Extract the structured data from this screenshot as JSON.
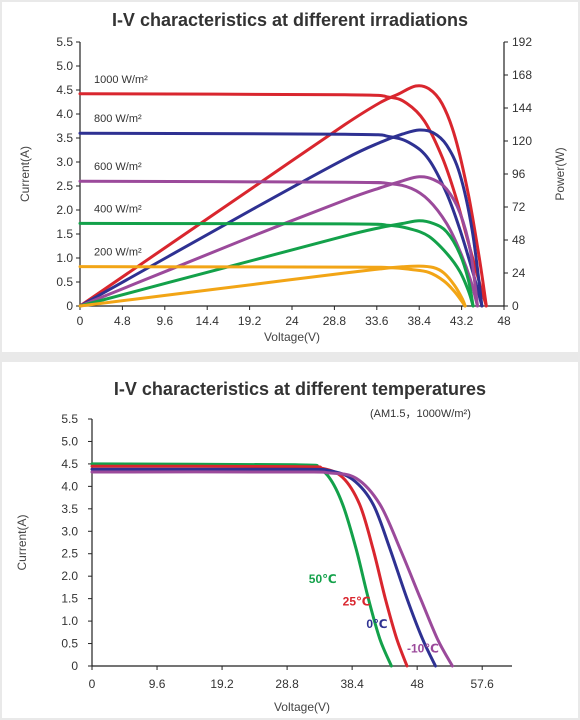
{
  "chart_data": [
    {
      "type": "line",
      "title": "I-V characteristics at different irradiations",
      "xlabel": "Voltage(V)",
      "ylabel": "Current(A)",
      "y2label": "Power(W)",
      "xlim": [
        0,
        48
      ],
      "ylim": [
        0,
        5.5
      ],
      "y2lim": [
        0,
        192
      ],
      "xticks": [
        "0",
        "4.8",
        "9.6",
        "14.4",
        "19.2",
        "24",
        "28.8",
        "33.6",
        "38.4",
        "43.2",
        "48"
      ],
      "yticks": [
        "0",
        "0.5",
        "1.0",
        "1.5",
        "2.0",
        "2.5",
        "3.0",
        "3.5",
        "4.0",
        "4.5",
        "5.0",
        "5.5"
      ],
      "y2ticks": [
        "0",
        "24",
        "48",
        "72",
        "96",
        "120",
        "144",
        "168",
        "192"
      ],
      "grid": false,
      "series": [
        {
          "name": "1000 W/m²",
          "color": "#d9262e",
          "iv": [
            [
              0,
              4.42
            ],
            [
              30,
              4.4
            ],
            [
              35,
              4.35
            ],
            [
              37,
              4.22
            ],
            [
              39,
              3.85
            ],
            [
              41,
              3.1
            ],
            [
              42.5,
              2.3
            ],
            [
              44,
              1.3
            ],
            [
              45.2,
              0.5
            ],
            [
              46,
              0
            ]
          ],
          "pv": [
            [
              0,
              0
            ],
            [
              10,
              44
            ],
            [
              20,
              88
            ],
            [
              30,
              132
            ],
            [
              34,
              148
            ],
            [
              36,
              154
            ],
            [
              38,
              160
            ],
            [
              39.5,
              158
            ],
            [
              41,
              147
            ],
            [
              42.5,
              122
            ],
            [
              44,
              80
            ],
            [
              45.2,
              35
            ],
            [
              46,
              0
            ]
          ]
        },
        {
          "name": "800 W/m²",
          "color": "#2e3192",
          "iv": [
            [
              0,
              3.6
            ],
            [
              30,
              3.58
            ],
            [
              35,
              3.53
            ],
            [
              37.5,
              3.38
            ],
            [
              39.5,
              3.05
            ],
            [
              41.5,
              2.35
            ],
            [
              43,
              1.6
            ],
            [
              44.4,
              0.75
            ],
            [
              45.5,
              0
            ]
          ],
          "pv": [
            [
              0,
              0
            ],
            [
              10,
              36
            ],
            [
              20,
              72
            ],
            [
              30,
              107
            ],
            [
              34,
              119
            ],
            [
              36.5,
              125
            ],
            [
              38.4,
              128
            ],
            [
              40,
              126
            ],
            [
              41.5,
              117
            ],
            [
              43,
              96
            ],
            [
              44.4,
              55
            ],
            [
              45.5,
              0
            ]
          ]
        },
        {
          "name": "600 W/m²",
          "color": "#9b4a9b",
          "iv": [
            [
              0,
              2.6
            ],
            [
              30,
              2.58
            ],
            [
              35,
              2.55
            ],
            [
              37.5,
              2.45
            ],
            [
              39.5,
              2.2
            ],
            [
              41.5,
              1.72
            ],
            [
              43,
              1.15
            ],
            [
              44.2,
              0.55
            ],
            [
              45,
              0
            ]
          ],
          "pv": [
            [
              0,
              0
            ],
            [
              10,
              26
            ],
            [
              20,
              52
            ],
            [
              30,
              77
            ],
            [
              34,
              86
            ],
            [
              36.5,
              91
            ],
            [
              38.4,
              94
            ],
            [
              40,
              92
            ],
            [
              41.5,
              85
            ],
            [
              43,
              68
            ],
            [
              44.2,
              40
            ],
            [
              45,
              0
            ]
          ]
        },
        {
          "name": "400 W/m²",
          "color": "#13a14a",
          "iv": [
            [
              0,
              1.72
            ],
            [
              30,
              1.71
            ],
            [
              35,
              1.68
            ],
            [
              37.5,
              1.6
            ],
            [
              39.5,
              1.45
            ],
            [
              41.5,
              1.1
            ],
            [
              43,
              0.72
            ],
            [
              44,
              0.3
            ],
            [
              44.5,
              0
            ]
          ],
          "pv": [
            [
              0,
              0
            ],
            [
              10,
              17
            ],
            [
              20,
              34
            ],
            [
              30,
              51
            ],
            [
              34,
              57
            ],
            [
              36.5,
              60
            ],
            [
              38.4,
              62
            ],
            [
              40,
              60
            ],
            [
              41.5,
              54
            ],
            [
              43,
              38
            ],
            [
              44,
              18
            ],
            [
              44.5,
              0
            ]
          ]
        },
        {
          "name": "200 W/m²",
          "color": "#f2a516",
          "iv": [
            [
              0,
              0.82
            ],
            [
              30,
              0.81
            ],
            [
              35,
              0.8
            ],
            [
              37.5,
              0.76
            ],
            [
              39.5,
              0.7
            ],
            [
              41.2,
              0.52
            ],
            [
              42.4,
              0.3
            ],
            [
              43.3,
              0.08
            ],
            [
              43.6,
              0
            ]
          ],
          "pv": [
            [
              0,
              0
            ],
            [
              10,
              8
            ],
            [
              20,
              16
            ],
            [
              30,
              24
            ],
            [
              34,
              27
            ],
            [
              36.5,
              28.5
            ],
            [
              38.4,
              29
            ],
            [
              40,
              28
            ],
            [
              41.2,
              24
            ],
            [
              42.4,
              15
            ],
            [
              43.3,
              5
            ],
            [
              43.6,
              0
            ]
          ]
        }
      ]
    },
    {
      "type": "line",
      "title": "I-V characteristics at different temperatures",
      "subtitle": "(AM1.5，1000W/m²)",
      "xlabel": "Voltage(V)",
      "ylabel": "Current(A)",
      "xlim": [
        0,
        62
      ],
      "ylim": [
        0,
        5.5
      ],
      "xticks": [
        {
          "v": 0,
          "t": "0"
        },
        {
          "v": 9.6,
          "t": "9.6"
        },
        {
          "v": 19.2,
          "t": "19.2"
        },
        {
          "v": 28.8,
          "t": "28.8"
        },
        {
          "v": 38.4,
          "t": "38.4"
        },
        {
          "v": 48,
          "t": "48"
        },
        {
          "v": 57.6,
          "t": "57.6"
        }
      ],
      "yticks": [
        "0",
        "0.5",
        "1.0",
        "1.5",
        "2.0",
        "2.5",
        "3.0",
        "3.5",
        "4.0",
        "4.5",
        "5.0",
        "5.5"
      ],
      "grid": false,
      "series": [
        {
          "name": "50℃",
          "color": "#13a14a",
          "iv": [
            [
              0,
              4.5
            ],
            [
              30,
              4.48
            ],
            [
              33,
              4.42
            ],
            [
              35,
              4.2
            ],
            [
              37,
              3.6
            ],
            [
              39,
              2.6
            ],
            [
              40.8,
              1.5
            ],
            [
              42.5,
              0.6
            ],
            [
              44.2,
              0
            ]
          ]
        },
        {
          "name": "25℃",
          "color": "#d9262e",
          "iv": [
            [
              0,
              4.45
            ],
            [
              30,
              4.44
            ],
            [
              34,
              4.4
            ],
            [
              37,
              4.2
            ],
            [
              39.5,
              3.6
            ],
            [
              41.5,
              2.6
            ],
            [
              43.3,
              1.5
            ],
            [
              45,
              0.6
            ],
            [
              46.5,
              0
            ]
          ]
        },
        {
          "name": "0℃",
          "color": "#2e3192",
          "iv": [
            [
              0,
              4.38
            ],
            [
              30,
              4.38
            ],
            [
              35,
              4.35
            ],
            [
              38.5,
              4.15
            ],
            [
              41.5,
              3.6
            ],
            [
              44,
              2.6
            ],
            [
              46.5,
              1.5
            ],
            [
              48.8,
              0.6
            ],
            [
              50.7,
              0
            ]
          ]
        },
        {
          "name": "-10℃",
          "color": "#9b4a9b",
          "iv": [
            [
              0,
              4.32
            ],
            [
              30,
              4.32
            ],
            [
              35,
              4.3
            ],
            [
              39,
              4.18
            ],
            [
              42.5,
              3.6
            ],
            [
              45.5,
              2.6
            ],
            [
              48.5,
              1.5
            ],
            [
              51,
              0.6
            ],
            [
              53.2,
              0
            ]
          ]
        }
      ]
    }
  ]
}
